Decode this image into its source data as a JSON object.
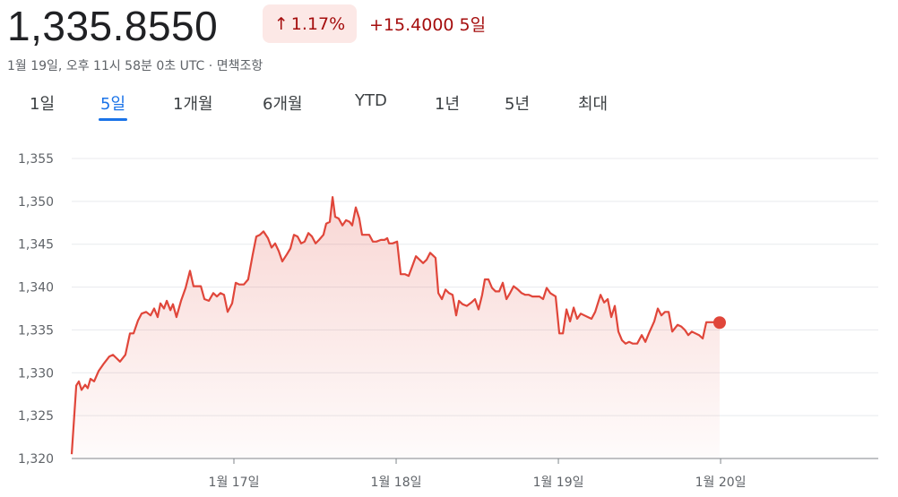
{
  "header": {
    "price": "1,335.8550",
    "change_percent": "1.17%",
    "change": "+15.4000",
    "period": "5일",
    "timestamp": "1월 19일, 오후 11시 58분 0초 UTC ·",
    "disclaimer": "면책조항"
  },
  "tabs": [
    "1일",
    "5일",
    "1개월",
    "6개월",
    "YTD",
    "1년",
    "5년",
    "최대"
  ],
  "chart_data": {
    "type": "line",
    "color": "#e0463a",
    "grid": true,
    "x": [
      0,
      0.028,
      0.044,
      0.061,
      0.083,
      0.099,
      0.116,
      0.138,
      0.166,
      0.199,
      0.232,
      0.254,
      0.276,
      0.298,
      0.331,
      0.359,
      0.381,
      0.409,
      0.431,
      0.459,
      0.486,
      0.508,
      0.53,
      0.547,
      0.569,
      0.586,
      0.608,
      0.624,
      0.646,
      0.674,
      0.702,
      0.729,
      0.751,
      0.773,
      0.796,
      0.818,
      0.845,
      0.873,
      0.895,
      0.917,
      0.939,
      0.961,
      0.989,
      1.011,
      1.033,
      1.061,
      1.088,
      1.116,
      1.138,
      1.16,
      1.182,
      1.21,
      1.232,
      1.254,
      1.276,
      1.298,
      1.326,
      1.348,
      1.37,
      1.392,
      1.414,
      1.436,
      1.459,
      1.481,
      1.503,
      1.525,
      1.552,
      1.569,
      1.591,
      1.608,
      1.624,
      1.646,
      1.669,
      1.691,
      1.713,
      1.729,
      1.751,
      1.773,
      1.79,
      1.812,
      1.834,
      1.856,
      1.878,
      1.906,
      1.928,
      1.945,
      1.956,
      1.978,
      2.006,
      2.028,
      2.055,
      2.077,
      2.099,
      2.122,
      2.144,
      2.166,
      2.188,
      2.21,
      2.232,
      2.243,
      2.26,
      2.282,
      2.304,
      2.326,
      2.348,
      2.37,
      2.387,
      2.409,
      2.436,
      2.464,
      2.486,
      2.508,
      2.53,
      2.547,
      2.569,
      2.591,
      2.613,
      2.635,
      2.657,
      2.68,
      2.702,
      2.724,
      2.751,
      2.773,
      2.796,
      2.818,
      2.84,
      2.862,
      2.884,
      2.906,
      2.928,
      2.95,
      2.983,
      3.006,
      3.028,
      3.05,
      3.072,
      3.094,
      3.116,
      3.138,
      3.16,
      3.182,
      3.204,
      3.227,
      3.26,
      3.282,
      3.304,
      3.326,
      3.348,
      3.37,
      3.392,
      3.414,
      3.436,
      3.459,
      3.486,
      3.514,
      3.536,
      3.558,
      3.591,
      3.613,
      3.635,
      3.657,
      3.68,
      3.702,
      3.735,
      3.757,
      3.779,
      3.801,
      3.823,
      3.845,
      3.867,
      3.89,
      3.912,
      3.956,
      3.994
    ],
    "values": [
      1320.5,
      1328.5,
      1329,
      1328,
      1328.6,
      1328.2,
      1329.3,
      1329,
      1330.2,
      1331.1,
      1331.9,
      1332.1,
      1331.7,
      1331.3,
      1332.1,
      1334.6,
      1334.6,
      1336.1,
      1336.9,
      1337.1,
      1336.7,
      1337.5,
      1336.5,
      1338.1,
      1337.5,
      1338.4,
      1337.3,
      1338,
      1336.5,
      1338.4,
      1339.9,
      1341.9,
      1340.1,
      1340.1,
      1340.1,
      1338.6,
      1338.4,
      1339.3,
      1338.9,
      1339.3,
      1339.1,
      1337.1,
      1338.1,
      1340.5,
      1340.3,
      1340.3,
      1340.9,
      1343.8,
      1345.9,
      1346.1,
      1346.5,
      1345.7,
      1344.6,
      1345.1,
      1344.2,
      1343,
      1343.8,
      1344.5,
      1346.1,
      1345.9,
      1345.1,
      1345.3,
      1346.3,
      1345.9,
      1345.1,
      1345.5,
      1346.1,
      1347.4,
      1347.6,
      1350.5,
      1348.2,
      1348,
      1347.2,
      1347.8,
      1347.6,
      1347.2,
      1349.3,
      1348,
      1346.1,
      1346.1,
      1346.1,
      1345.3,
      1345.3,
      1345.5,
      1345.5,
      1345.7,
      1345.1,
      1345.1,
      1345.3,
      1341.5,
      1341.5,
      1341.3,
      1342.4,
      1343.6,
      1343.2,
      1342.8,
      1343.2,
      1344,
      1343.6,
      1343.4,
      1339.3,
      1338.6,
      1339.7,
      1339.3,
      1339.1,
      1336.7,
      1338.4,
      1338,
      1337.8,
      1338.2,
      1338.6,
      1337.4,
      1339.1,
      1340.9,
      1340.9,
      1339.9,
      1339.5,
      1339.5,
      1340.5,
      1338.6,
      1339.3,
      1340.1,
      1339.7,
      1339.3,
      1339.1,
      1339.1,
      1338.9,
      1338.9,
      1338.9,
      1338.6,
      1339.9,
      1339.3,
      1338.9,
      1334.6,
      1334.6,
      1337.4,
      1336,
      1337.6,
      1336.3,
      1336.9,
      1336.7,
      1336.5,
      1336.3,
      1337.1,
      1339.1,
      1338.2,
      1338.6,
      1336.5,
      1337.8,
      1334.8,
      1333.8,
      1333.4,
      1333.6,
      1333.4,
      1333.4,
      1334.4,
      1333.6,
      1334.6,
      1336,
      1337.5,
      1336.7,
      1337.1,
      1337.1,
      1334.8,
      1335.6,
      1335.4,
      1335,
      1334.4,
      1334.8,
      1334.6,
      1334.4,
      1334,
      1335.9,
      1335.9,
      1335.855
    ],
    "xlim": [
      0,
      4.972
    ],
    "xticks": [
      {
        "value": 1,
        "label": "1월 17일"
      },
      {
        "value": 2,
        "label": "1월 18일"
      },
      {
        "value": 3,
        "label": "1월 19일"
      },
      {
        "value": 4,
        "label": "1월 20일"
      }
    ],
    "ylim": [
      1320,
      1355
    ],
    "yticks": [
      {
        "value": 1320,
        "label": "1,320"
      },
      {
        "value": 1325,
        "label": "1,325"
      },
      {
        "value": 1330,
        "label": "1,330"
      },
      {
        "value": 1335,
        "label": "1,335"
      },
      {
        "value": 1340,
        "label": "1,340"
      },
      {
        "value": 1345,
        "label": "1,345"
      },
      {
        "value": 1350,
        "label": "1,350"
      },
      {
        "value": 1355,
        "label": "1,355"
      }
    ]
  }
}
